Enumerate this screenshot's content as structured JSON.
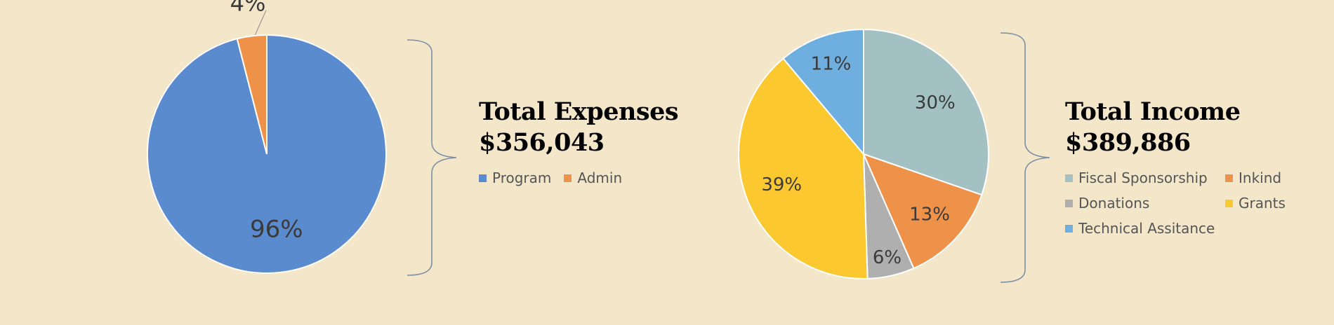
{
  "chart_data": [
    {
      "type": "pie",
      "title": "Total Expenses",
      "total": "$356,043",
      "legend_position": "right",
      "slices": [
        {
          "label": "Program",
          "value": 96,
          "display": "96%",
          "color": "#5b8bcf"
        },
        {
          "label": "Admin",
          "value": 4,
          "display": "4%",
          "color": "#ee9149"
        }
      ]
    },
    {
      "type": "pie",
      "title": "Total Income",
      "total": "$389,886",
      "legend_position": "right",
      "slices": [
        {
          "label": "Fiscal Sponsorship",
          "value": 30,
          "display": "30%",
          "color": "#a3c1c2"
        },
        {
          "label": "Inkind",
          "value": 13,
          "display": "13%",
          "color": "#ee9149"
        },
        {
          "label": "Donations",
          "value": 6,
          "display": "6%",
          "color": "#afafaf"
        },
        {
          "label": "Grants",
          "value": 39,
          "display": "39%",
          "color": "#fcc82f"
        },
        {
          "label": "Technical Assitance",
          "value": 11,
          "display": "11%",
          "color": "#6eafdf"
        }
      ]
    }
  ]
}
